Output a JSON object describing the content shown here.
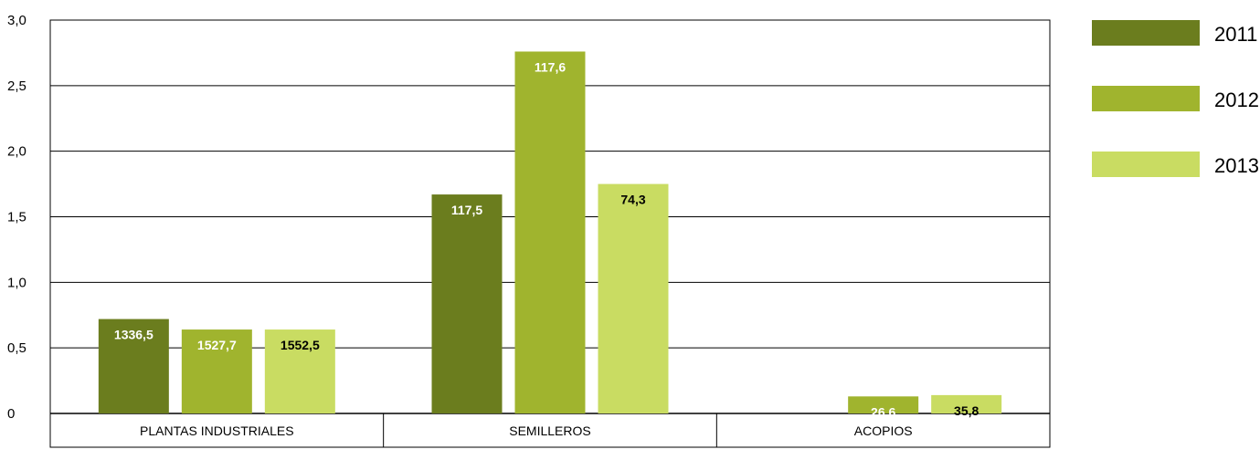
{
  "chart_data": {
    "type": "bar",
    "categories": [
      "PLANTAS INDUSTRIALES",
      "SEMILLEROS",
      "ACOPIOS"
    ],
    "series": [
      {
        "name": "2011",
        "color": "#6b7d1e",
        "values": [
          0.72,
          1.67,
          null
        ],
        "labels": [
          "1336,5",
          "117,5",
          ""
        ],
        "label_color": "#ffffff"
      },
      {
        "name": "2012",
        "color": "#a0b42e",
        "values": [
          0.64,
          2.76,
          0.13
        ],
        "labels": [
          "1527,7",
          "117,6",
          "26,6"
        ],
        "label_color": "#ffffff"
      },
      {
        "name": "2013",
        "color": "#c9dc62",
        "values": [
          0.64,
          1.75,
          0.14
        ],
        "labels": [
          "1552,5",
          "74,3",
          "35,8"
        ],
        "label_color": "#000000"
      }
    ],
    "yticks": [
      "0",
      "0,5",
      "1,0",
      "1,5",
      "2,0",
      "2,5",
      "3,0"
    ],
    "ylim": [
      0,
      3
    ],
    "grid": true,
    "legend_position": "right",
    "title": "",
    "xlabel": "",
    "ylabel": ""
  }
}
